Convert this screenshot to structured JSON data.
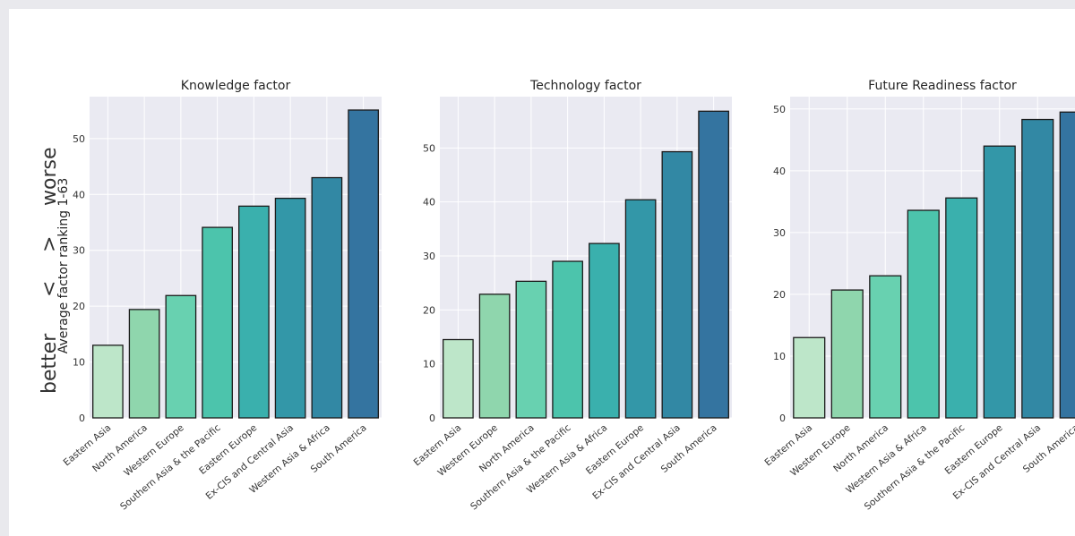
{
  "figure": {
    "ylabel": "Average factor ranking 1-63",
    "side_label": {
      "better": "better",
      "lt": "<",
      "gt": ">",
      "worse": "worse"
    }
  },
  "palette": [
    "#bde6c9",
    "#8fd6ad",
    "#68d1b0",
    "#4cc4ac",
    "#3ab0ad",
    "#3397a8",
    "#3288a4",
    "#3474a0"
  ],
  "chart_data": [
    {
      "type": "bar",
      "title": "Knowledge factor",
      "categories": [
        "Eastern Asia",
        "North America",
        "Western Europe",
        "Southern Asia & the Pacific",
        "Eastern Europe",
        "Ex-CIS and Central Asia",
        "Western Asia & Africa",
        "South America"
      ],
      "values": [
        13.0,
        19.4,
        21.9,
        34.1,
        37.9,
        39.3,
        43.0,
        55.1
      ],
      "ylim": [
        0,
        57.5
      ],
      "yticks": [
        0,
        10,
        20,
        30,
        40,
        50
      ],
      "grid": true
    },
    {
      "type": "bar",
      "title": "Technology factor",
      "categories": [
        "Eastern Asia",
        "Western Europe",
        "North America",
        "Southern Asia & the Pacific",
        "Western Asia & Africa",
        "Eastern Europe",
        "Ex-CIS and Central Asia",
        "South America"
      ],
      "values": [
        14.5,
        22.9,
        25.3,
        29.0,
        32.3,
        40.4,
        49.3,
        56.8
      ],
      "ylim": [
        0,
        59.5
      ],
      "yticks": [
        0,
        10,
        20,
        30,
        40,
        50
      ],
      "grid": true
    },
    {
      "type": "bar",
      "title": "Future Readiness factor",
      "categories": [
        "Eastern Asia",
        "Western Europe",
        "North America",
        "Western Asia & Africa",
        "Southern Asia & the Pacific",
        "Eastern Europe",
        "Ex-CIS and Central Asia",
        "South America"
      ],
      "values": [
        13.0,
        20.7,
        23.0,
        33.6,
        35.6,
        44.0,
        48.3,
        49.5
      ],
      "ylim": [
        0,
        52.0
      ],
      "yticks": [
        0,
        10,
        20,
        30,
        40,
        50
      ],
      "grid": true
    }
  ]
}
